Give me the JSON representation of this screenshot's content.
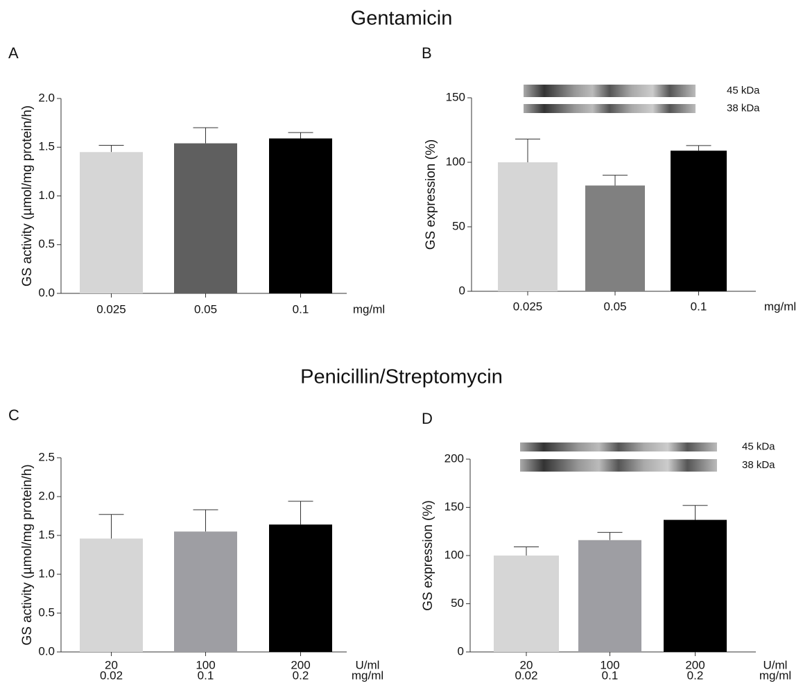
{
  "headings": [
    "Gentamicin",
    "Penicillin/Streptomycin"
  ],
  "chart_data": [
    {
      "type": "bar",
      "panel": "A",
      "ylabel": "GS activity (µmol/mg protein/h)",
      "categories": [
        "0.025",
        "0.05",
        "0.1"
      ],
      "x_units": [
        "mg/ml"
      ],
      "values": [
        1.45,
        1.54,
        1.59
      ],
      "errors": [
        0.07,
        0.16,
        0.06
      ],
      "colors": [
        "#d6d6d6",
        "#5f5f5f",
        "#000000"
      ],
      "ylim": [
        0,
        2
      ],
      "yticks": [
        {
          "value": 0,
          "label": "0.0"
        },
        0.5,
        {
          "value": 1,
          "label": "1.0"
        },
        1.5,
        {
          "value": 2,
          "label": "2.0"
        }
      ]
    },
    {
      "type": "bar",
      "panel": "B",
      "ylabel": "GS expression (%)",
      "categories": [
        "0.025",
        "0.05",
        "0.1"
      ],
      "x_units": [
        "mg/ml"
      ],
      "values": [
        100,
        82,
        109
      ],
      "errors": [
        18,
        8,
        4
      ],
      "colors": [
        "#d6d6d6",
        "#808080",
        "#000000"
      ],
      "ylim": [
        0,
        150
      ],
      "yticks": [
        0,
        50,
        100,
        150
      ],
      "blot_labels": [
        "45 kDa",
        "38 kDa"
      ]
    },
    {
      "type": "bar",
      "panel": "C",
      "ylabel": "GS activity (µmol/mg protein/h)",
      "categories": [
        "20",
        "100",
        "200"
      ],
      "categories2": [
        "0.02",
        "0.1",
        "0.2"
      ],
      "x_units": [
        "U/ml",
        "mg/ml"
      ],
      "values": [
        1.46,
        1.55,
        1.64
      ],
      "errors": [
        0.31,
        0.28,
        0.3
      ],
      "colors": [
        "#d6d6d6",
        "#9e9ea3",
        "#000000"
      ],
      "ylim": [
        0,
        2.5
      ],
      "yticks": [
        {
          "value": 0,
          "label": "0.0"
        },
        0.5,
        {
          "value": 1,
          "label": "1.0"
        },
        1.5,
        {
          "value": 2,
          "label": "2.0"
        },
        2.5
      ]
    },
    {
      "type": "bar",
      "panel": "D",
      "ylabel": "GS expression (%)",
      "categories": [
        "20",
        "100",
        "200"
      ],
      "categories2": [
        "0.02",
        "0.1",
        "0.2"
      ],
      "x_units": [
        "U/ml",
        "mg/ml"
      ],
      "values": [
        100,
        116,
        137
      ],
      "errors": [
        9,
        8,
        15
      ],
      "colors": [
        "#d6d6d6",
        "#9e9ea3",
        "#000000"
      ],
      "ylim": [
        0,
        200
      ],
      "yticks": [
        0,
        50,
        100,
        150,
        200
      ],
      "blot_labels": [
        "45 kDa",
        "38 kDa"
      ]
    }
  ]
}
